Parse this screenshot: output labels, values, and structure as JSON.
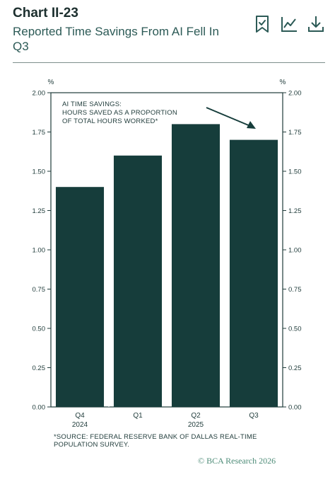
{
  "header": {
    "chart_id": "Chart II-23",
    "subtitle": "Reported Time Savings From AI Fell In Q3"
  },
  "actions": {
    "bookmark": "bookmark-icon",
    "chart": "line-chart-icon",
    "download": "download-icon"
  },
  "colors": {
    "bar": "#163d3b",
    "text": "#1f3b3a",
    "accent": "#2c5a56",
    "copyright": "#4e8c78"
  },
  "chart_data": {
    "type": "bar",
    "categories": [
      "Q4",
      "Q1",
      "Q2",
      "Q3"
    ],
    "category_years": [
      "2024",
      "",
      "2025",
      ""
    ],
    "values": [
      1.4,
      1.6,
      1.8,
      1.7
    ],
    "ylim": [
      0,
      2.0
    ],
    "yticks": [
      "0.00",
      "0.25",
      "0.50",
      "0.75",
      "1.00",
      "1.25",
      "1.50",
      "1.75",
      "2.00"
    ],
    "y_unit_left": "%",
    "y_unit_right": "%",
    "annotation": [
      "AI TIME SAVINGS:",
      "HOURS SAVED AS A PROPORTION",
      "OF TOTAL HOURS WORKED*"
    ],
    "grid": false,
    "legend": "none"
  },
  "source": "*SOURCE: FEDERAL RESERVE BANK OF DALLAS REAL-TIME POPULATION SURVEY.",
  "copyright": "© BCA Research 2026"
}
